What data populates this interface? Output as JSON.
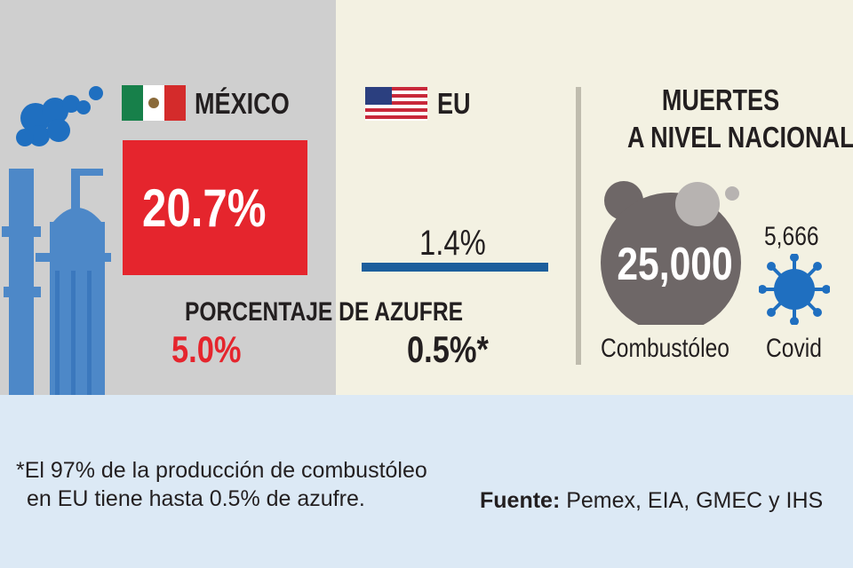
{
  "countries": {
    "mexico": {
      "name": "MÉXICO",
      "share": "20.7%",
      "share_value": 20.7,
      "sulfur": "5.0%"
    },
    "us": {
      "name": "EU",
      "share": "1.4%",
      "share_value": 1.4,
      "sulfur": "0.5%*"
    }
  },
  "sulfur_title": "PORCENTAJE DE AZUFRE",
  "deaths": {
    "title_line1": "MUERTES",
    "title_line2": "A NIVEL NACIONAL",
    "fuel_oil": {
      "value": "25,000",
      "label": "Combustóleo"
    },
    "covid": {
      "value": "5,666",
      "label": "Covid"
    }
  },
  "footnote": {
    "line1": "*El 97% de la producción de combustóleo",
    "line2": "en EU tiene hasta 0.5% de azufre."
  },
  "source": {
    "label": "Fuente:",
    "text": " Pemex, EIA, GMEC y IHS"
  },
  "colors": {
    "mexico_red": "#e5252d",
    "us_blue": "#1c5e9c",
    "smoke_blue": "#1f6fc0",
    "cloud_gray": "#6e6767"
  },
  "icons": [
    "refinery-icon",
    "mexico-flag-icon",
    "us-flag-icon",
    "smoke-cloud-icon",
    "virus-icon"
  ],
  "chart_data": [
    {
      "type": "bar",
      "categories": [
        "MÉXICO",
        "EU"
      ],
      "values": [
        20.7,
        1.4
      ],
      "value_labels": [
        "20.7%",
        "1.4%"
      ]
    },
    {
      "type": "table",
      "title": "PORCENTAJE DE AZUFRE",
      "categories": [
        "MÉXICO",
        "EU"
      ],
      "values": [
        5.0,
        0.5
      ],
      "value_labels": [
        "5.0%",
        "0.5%*"
      ]
    },
    {
      "type": "bar",
      "title": "MUERTES A NIVEL NACIONAL",
      "categories": [
        "Combustóleo",
        "Covid"
      ],
      "values": [
        25000,
        5666
      ],
      "value_labels": [
        "25,000",
        "5,666"
      ]
    }
  ]
}
